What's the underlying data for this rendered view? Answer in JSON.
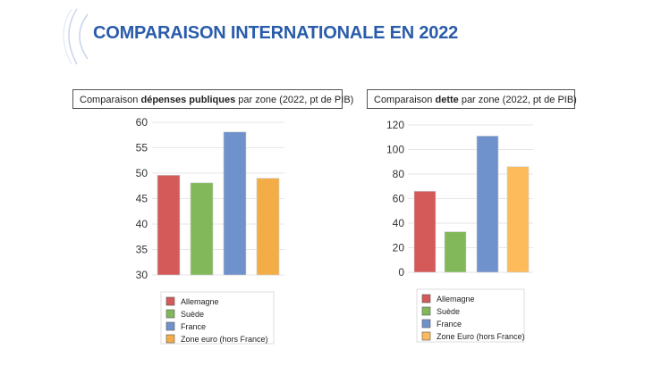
{
  "header": {
    "title": "COMPARAISON INTERNATIONALE EN 2022"
  },
  "chart_data": [
    {
      "type": "bar",
      "title": {
        "pre": "Comparaison ",
        "bold": "dépenses publiques",
        "post": " par zone (2022, pt de PIB)"
      },
      "categories": [
        "Allemagne",
        "Suède",
        "France",
        "Zone euro (hors France)"
      ],
      "values": [
        49.6,
        48.1,
        58.1,
        49.0
      ],
      "colors": [
        "#d45a5a",
        "#82b85a",
        "#7092cc",
        "#f3ad48"
      ],
      "ylim": [
        30,
        60
      ],
      "yticks": [
        30,
        35,
        40,
        45,
        50,
        55,
        60
      ],
      "grid": true,
      "legend": "bottom"
    },
    {
      "type": "bar",
      "title": {
        "pre": "Comparaison ",
        "bold": "dette",
        "post": " par zone (2022, pt de PIB)"
      },
      "categories": [
        "Allemagne",
        "Suède",
        "France",
        "Zone Euro (hors France)"
      ],
      "values": [
        66,
        33,
        111,
        86
      ],
      "colors": [
        "#d45a5a",
        "#82b85a",
        "#7092cc",
        "#fdbb5c"
      ],
      "ylim": [
        0,
        120
      ],
      "yticks": [
        0,
        20,
        40,
        60,
        80,
        100,
        120
      ],
      "grid": true,
      "legend": "bottom"
    }
  ]
}
